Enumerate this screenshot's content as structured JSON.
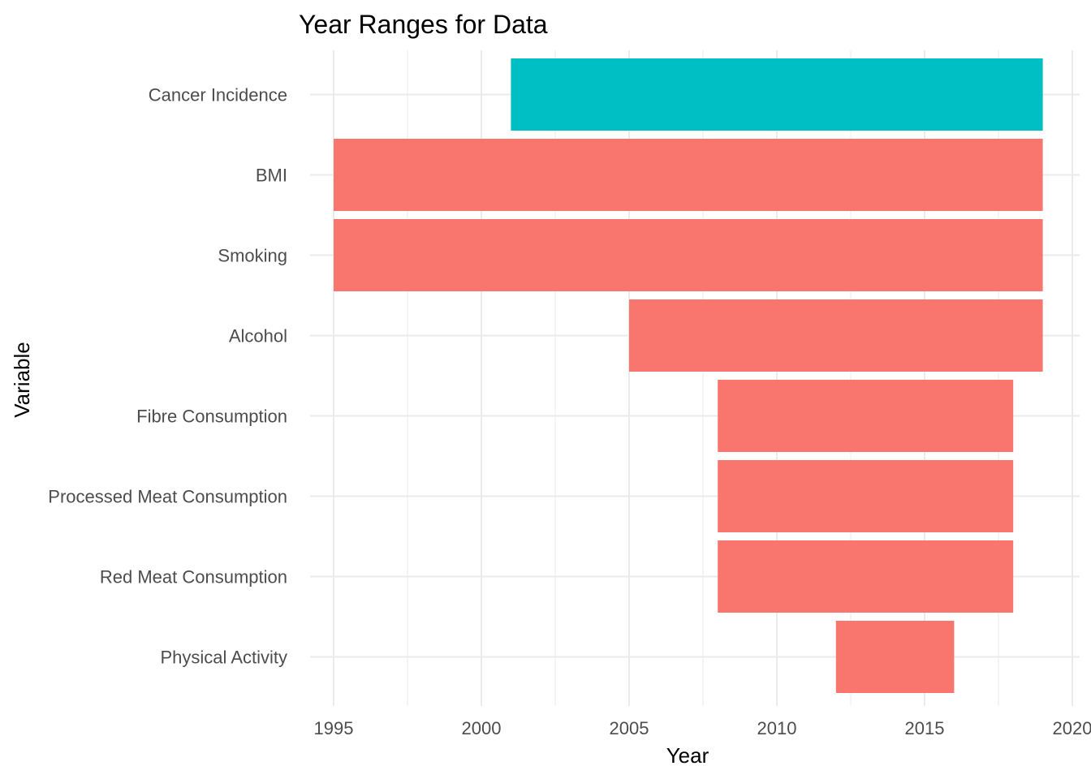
{
  "chart_data": {
    "type": "bar",
    "orientation": "horizontal-range",
    "title": "Year Ranges for Data",
    "xlabel": "Year",
    "ylabel": "Variable",
    "xlim": [
      1993.5,
      2020.2
    ],
    "xticks": [
      1995,
      2000,
      2005,
      2010,
      2015,
      2020
    ],
    "grid": true,
    "legend": "none",
    "categories": [
      "Cancer Incidence",
      "BMI",
      "Smoking",
      "Alcohol",
      "Fibre Consumption",
      "Processed Meat Consumption",
      "Red Meat Consumption",
      "Physical Activity"
    ],
    "ranges": [
      {
        "category": "Cancer Incidence",
        "start": 2001,
        "end": 2019,
        "color": "#00BFC4"
      },
      {
        "category": "BMI",
        "start": 1995,
        "end": 2019,
        "color": "#F8766D"
      },
      {
        "category": "Smoking",
        "start": 1995,
        "end": 2019,
        "color": "#F8766D"
      },
      {
        "category": "Alcohol",
        "start": 2005,
        "end": 2019,
        "color": "#F8766D"
      },
      {
        "category": "Fibre Consumption",
        "start": 2008,
        "end": 2018,
        "color": "#F8766D"
      },
      {
        "category": "Processed Meat Consumption",
        "start": 2008,
        "end": 2018,
        "color": "#F8766D"
      },
      {
        "category": "Red Meat Consumption",
        "start": 2008,
        "end": 2018,
        "color": "#F8766D"
      },
      {
        "category": "Physical Activity",
        "start": 2012,
        "end": 2016,
        "color": "#F8766D"
      }
    ]
  }
}
